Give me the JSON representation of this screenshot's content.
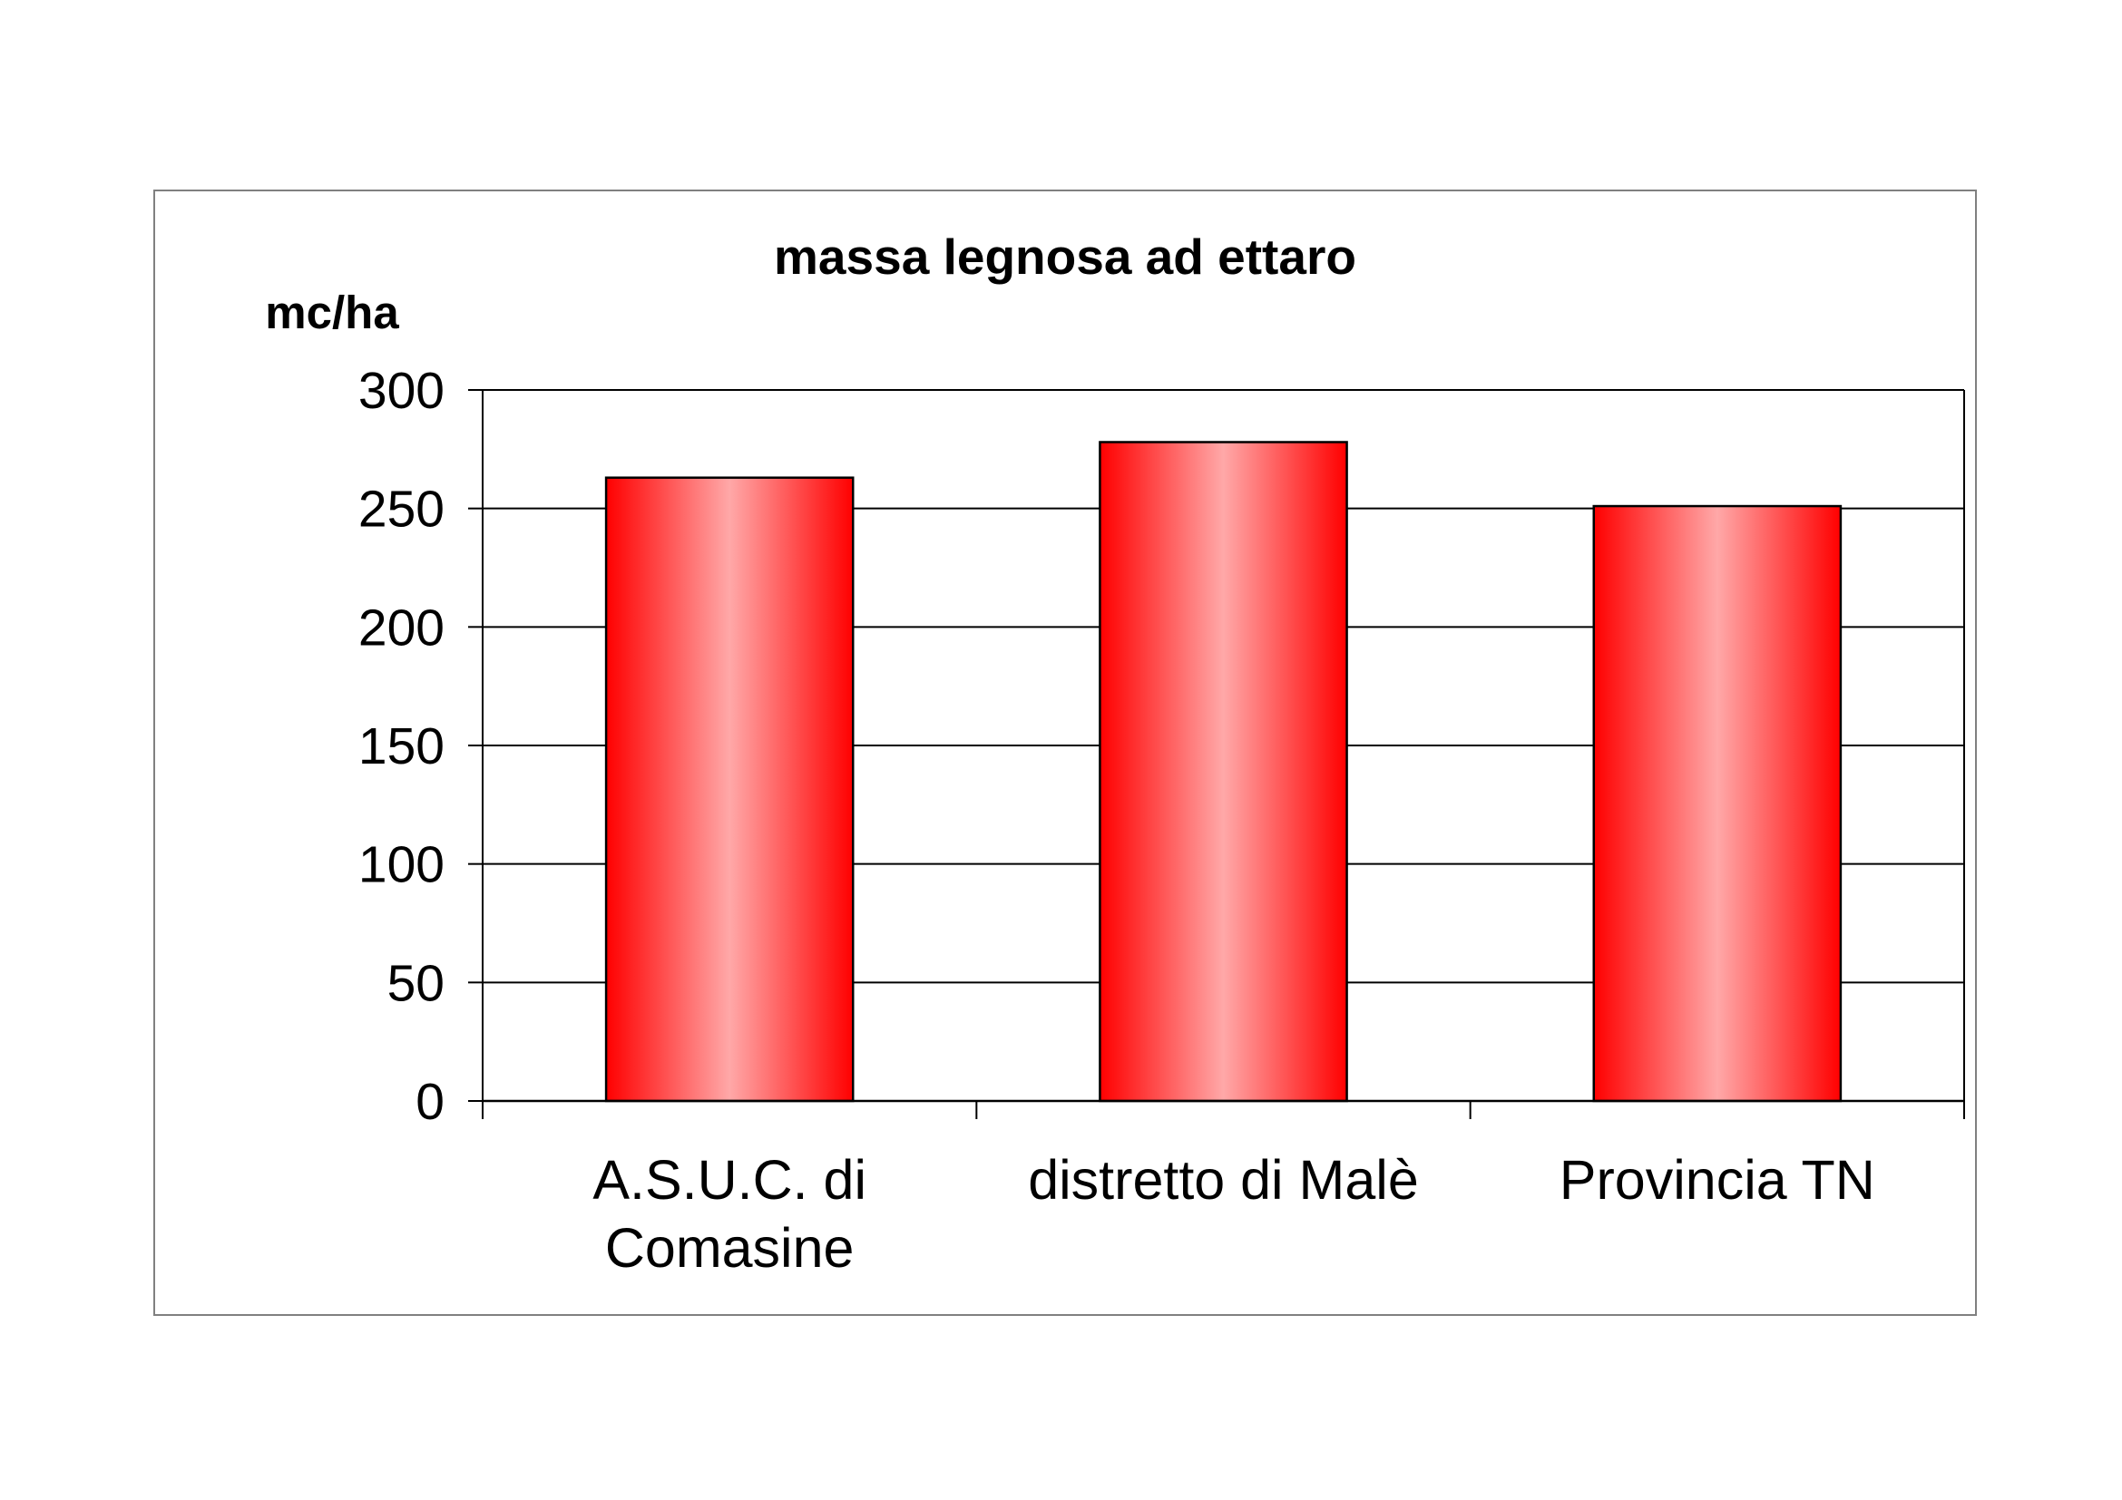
{
  "chart_data": {
    "type": "bar",
    "title": "massa legnosa ad ettaro",
    "ylabel": "mc/ha",
    "xlabel": "",
    "categories": [
      [
        "A.S.U.C. di",
        "Comasine"
      ],
      [
        "distretto di Malè"
      ],
      [
        "Provincia TN"
      ]
    ],
    "values": [
      263,
      278,
      251
    ],
    "ylim": [
      0,
      300
    ],
    "yticks": [
      "0",
      "50",
      "100",
      "150",
      "200",
      "250",
      "300"
    ],
    "grid": true,
    "legend": "none",
    "colors": {
      "bar_edge": "#ff0000",
      "bar_center": "#ffa8a8",
      "grid": "#000000",
      "frame": "#808080"
    }
  }
}
